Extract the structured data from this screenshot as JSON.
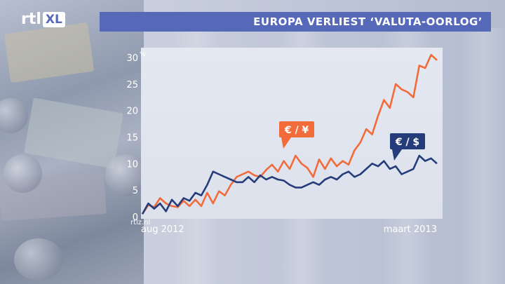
{
  "header": {
    "logo_rtl": "rtl",
    "logo_xl": "XL",
    "title": "EUROPA VERLIEST ‘VALUTA-OORLOG’"
  },
  "watermark": "rtlz.nl",
  "colors": {
    "banner": "#5569b8",
    "series_eur_yen": "#f26b3a",
    "series_eur_usd": "#243d7a"
  },
  "chart_data": {
    "type": "line",
    "title": "EUROPA VERLIEST ‘VALUTA-OORLOG’",
    "unit": "%",
    "x_start_label": "aug 2012",
    "x_end_label": "maart 2013",
    "ylim": [
      0,
      30
    ],
    "yticks": [
      0,
      5,
      10,
      15,
      20,
      25,
      30
    ],
    "grid": false,
    "series": [
      {
        "name": "€ / ¥",
        "color": "#f26b3a",
        "values": [
          0.5,
          2.2,
          1.8,
          3.5,
          2.5,
          2.0,
          1.8,
          3.0,
          2.0,
          3.2,
          2.0,
          4.5,
          2.5,
          4.8,
          4.0,
          6.0,
          7.5,
          8.0,
          8.5,
          7.8,
          7.5,
          8.8,
          9.8,
          8.5,
          10.5,
          9.0,
          11.5,
          10.0,
          9.2,
          7.5,
          10.8,
          9.0,
          11.0,
          9.5,
          10.5,
          9.8,
          12.5,
          14.0,
          16.5,
          15.5,
          19.0,
          22.0,
          20.5,
          25.0,
          24.0,
          23.5,
          22.5,
          28.5,
          28.0,
          30.5,
          29.5
        ]
      },
      {
        "name": "€ / $",
        "color": "#243d7a",
        "values": [
          0.5,
          2.5,
          1.5,
          2.5,
          1.0,
          3.2,
          2.0,
          3.5,
          3.0,
          4.5,
          4.0,
          6.0,
          8.5,
          8.0,
          7.5,
          7.0,
          6.5,
          6.5,
          7.5,
          6.5,
          7.8,
          7.0,
          7.5,
          7.0,
          6.8,
          6.0,
          5.5,
          5.5,
          6.0,
          6.5,
          6.0,
          7.0,
          7.5,
          7.0,
          8.0,
          8.5,
          7.5,
          8.0,
          9.0,
          10.0,
          9.5,
          10.5,
          9.0,
          9.5,
          8.0,
          8.5,
          9.0,
          11.5,
          10.5,
          11.0,
          10.0
        ]
      }
    ]
  }
}
